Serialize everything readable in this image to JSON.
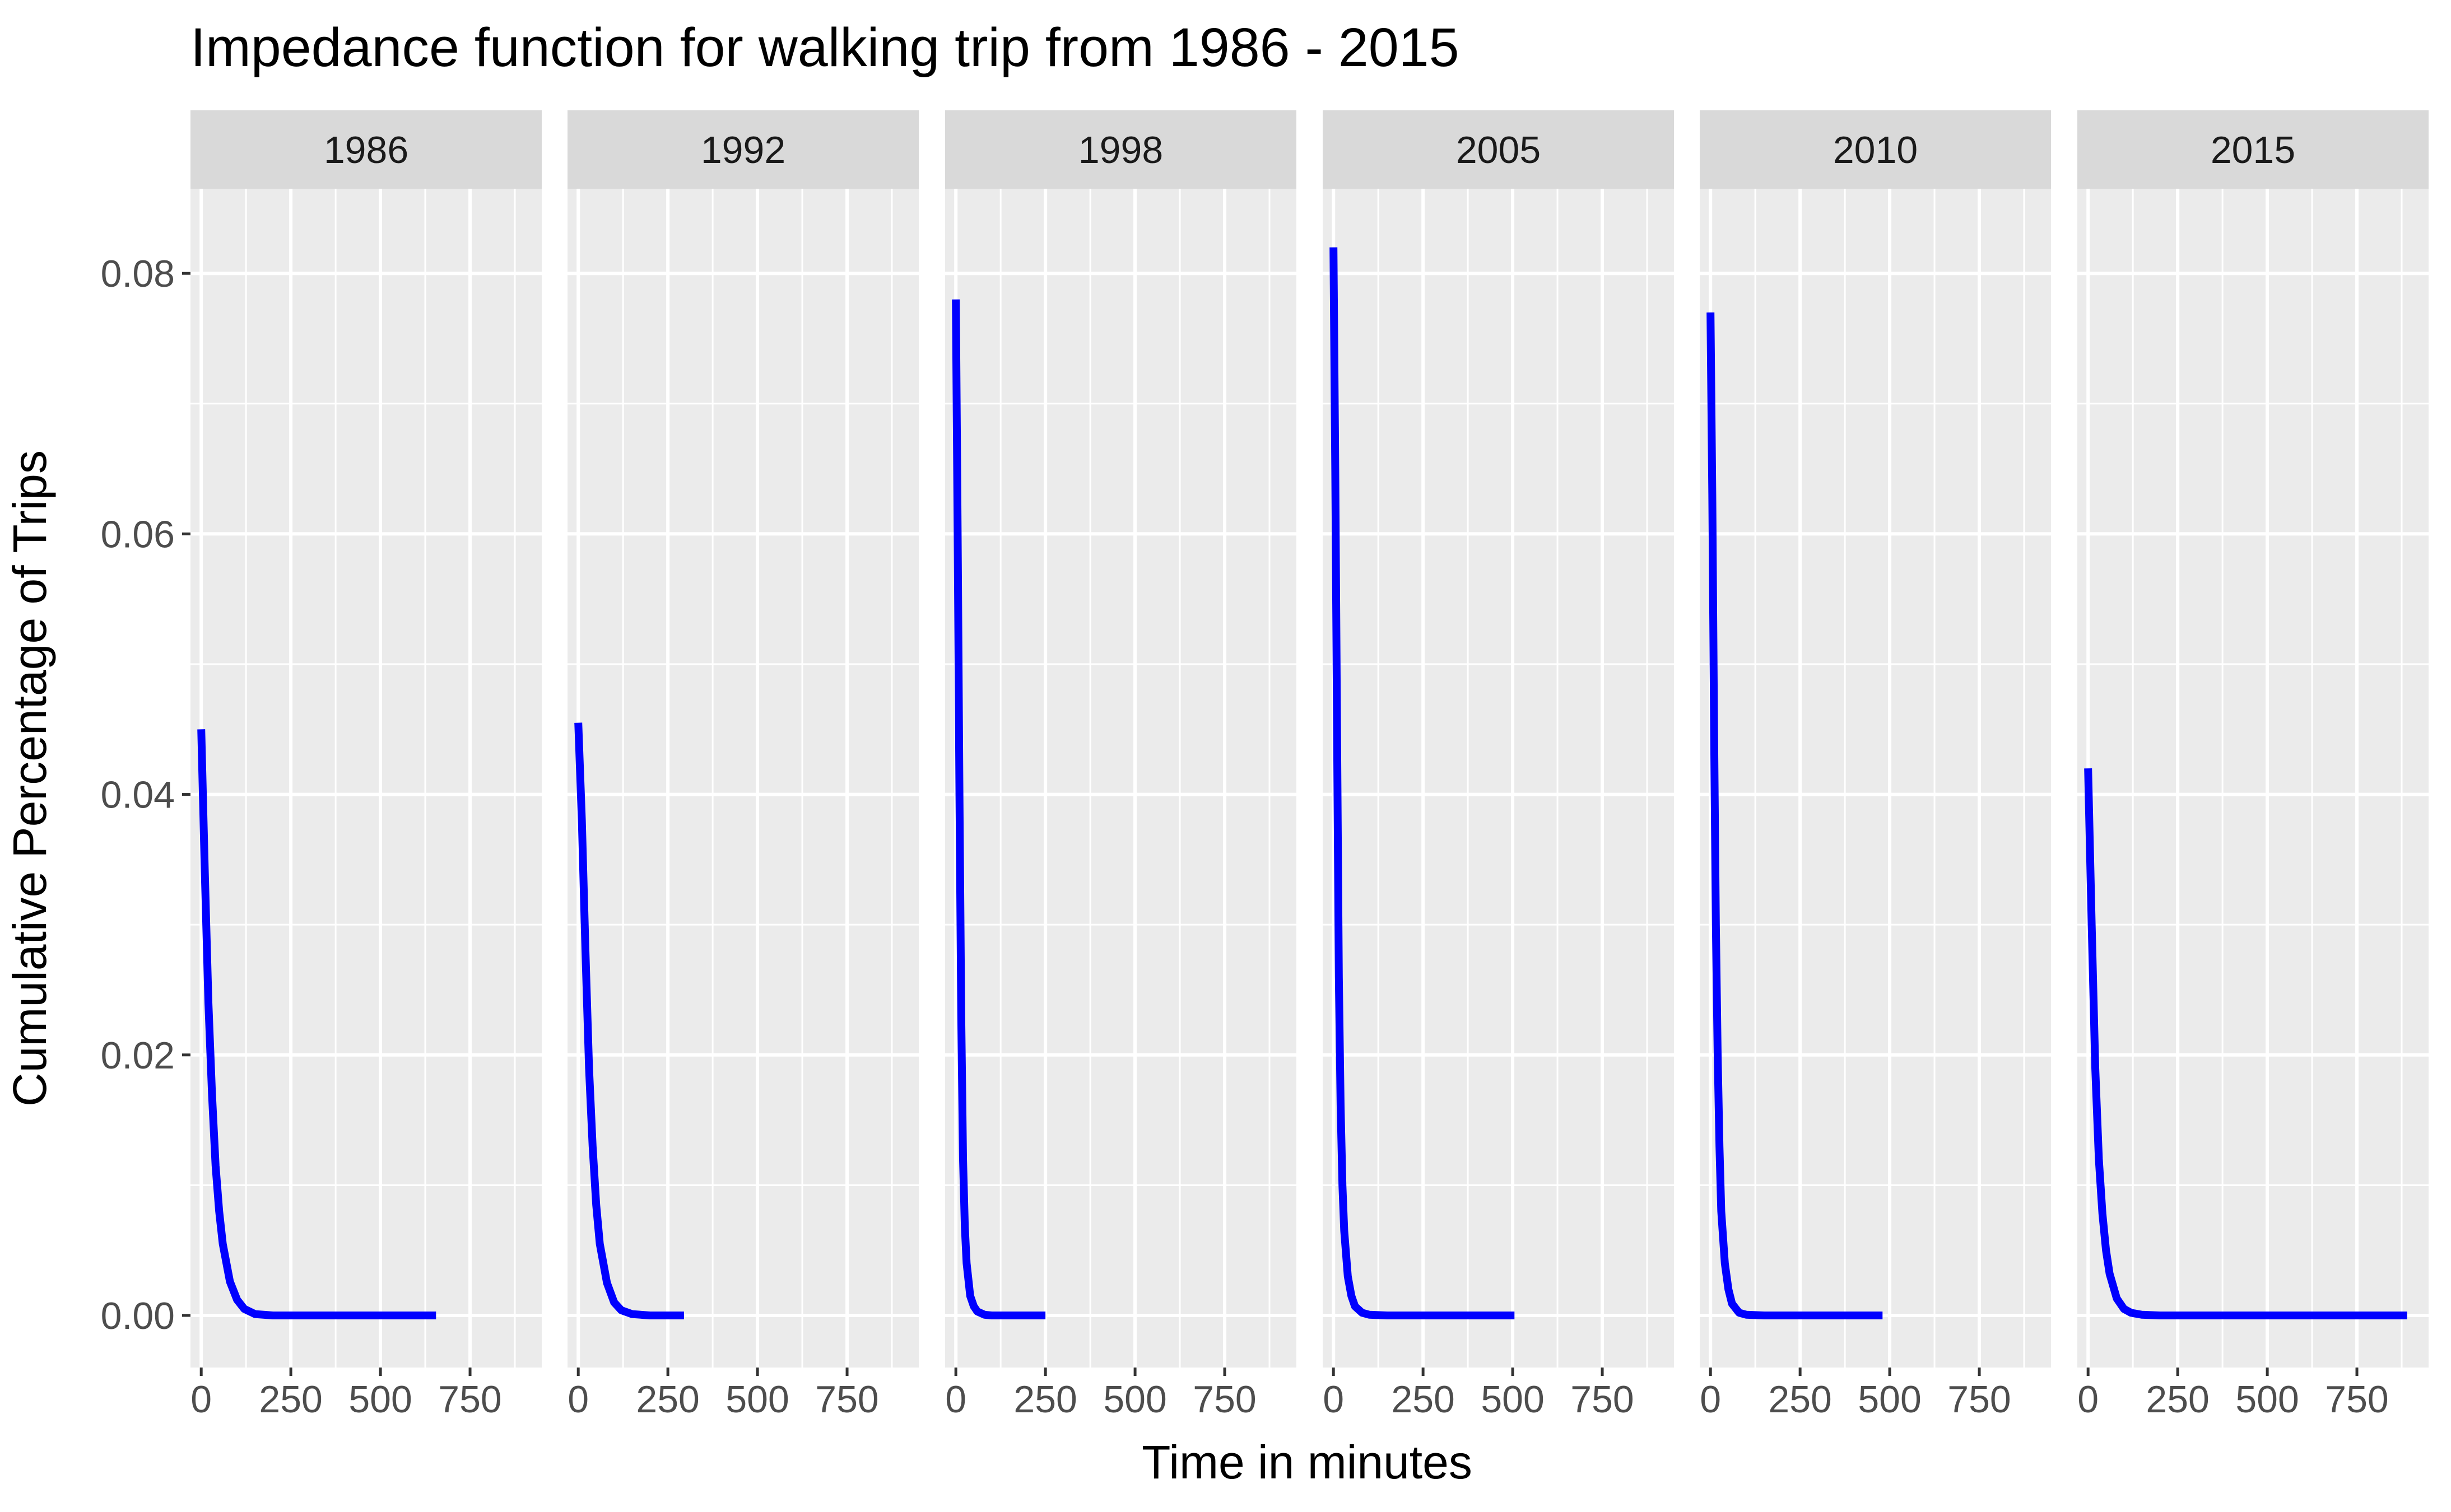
{
  "chart_data": {
    "type": "line",
    "title": "Impedance function for walking trip from 1986 - 2015",
    "xlabel": "Time in minutes",
    "ylabel": "Cumulative Percentage of Trips",
    "xlim": [
      -30,
      950
    ],
    "ylim": [
      -0.004,
      0.0865
    ],
    "x_ticks": [
      0,
      250,
      500,
      750
    ],
    "x_tick_labels": [
      "0",
      "250",
      "500",
      "750"
    ],
    "y_ticks": [
      0.0,
      0.02,
      0.04,
      0.06,
      0.08
    ],
    "y_tick_labels": [
      "0.00",
      "0.02",
      "0.04",
      "0.06",
      "0.08"
    ],
    "grid": true,
    "facet_by": "year",
    "line_color": "#0000ff",
    "panel_background": "#ebebeb",
    "strip_background": "#d9d9d9",
    "series": [
      {
        "name": "1986",
        "start_y": 0.045,
        "max_x": 655,
        "x": [
          0,
          10,
          20,
          30,
          40,
          50,
          60,
          80,
          100,
          120,
          150,
          200,
          300,
          400,
          500,
          655
        ],
        "values": [
          0.045,
          0.034,
          0.024,
          0.017,
          0.0115,
          0.008,
          0.0055,
          0.0026,
          0.0012,
          0.0005,
          0.0001,
          0.0,
          0.0,
          0.0,
          0.0,
          0.0
        ]
      },
      {
        "name": "1992",
        "start_y": 0.0455,
        "max_x": 295,
        "x": [
          0,
          10,
          20,
          30,
          40,
          50,
          60,
          80,
          100,
          120,
          150,
          200,
          250,
          295
        ],
        "values": [
          0.0455,
          0.038,
          0.028,
          0.019,
          0.013,
          0.0085,
          0.0055,
          0.0025,
          0.001,
          0.0004,
          0.0001,
          0.0,
          0.0,
          0.0
        ]
      },
      {
        "name": "1998",
        "start_y": 0.078,
        "max_x": 250,
        "x": [
          0,
          5,
          10,
          15,
          20,
          25,
          30,
          40,
          50,
          60,
          80,
          100,
          150,
          200,
          250
        ],
        "values": [
          0.078,
          0.06,
          0.04,
          0.023,
          0.012,
          0.0068,
          0.004,
          0.0015,
          0.0007,
          0.0003,
          5e-05,
          0.0,
          0.0,
          0.0,
          0.0
        ]
      },
      {
        "name": "2005",
        "start_y": 0.082,
        "max_x": 505,
        "x": [
          0,
          5,
          10,
          15,
          20,
          25,
          30,
          40,
          50,
          60,
          80,
          100,
          150,
          200,
          300,
          400,
          505
        ],
        "values": [
          0.082,
          0.065,
          0.045,
          0.026,
          0.016,
          0.01,
          0.0065,
          0.003,
          0.0015,
          0.0007,
          0.0002,
          5e-05,
          0.0,
          0.0,
          0.0,
          0.0,
          0.0
        ]
      },
      {
        "name": "2010",
        "start_y": 0.077,
        "max_x": 480,
        "x": [
          0,
          5,
          10,
          15,
          20,
          25,
          30,
          40,
          50,
          60,
          80,
          100,
          150,
          200,
          300,
          400,
          480
        ],
        "values": [
          0.077,
          0.063,
          0.045,
          0.03,
          0.02,
          0.013,
          0.008,
          0.004,
          0.002,
          0.0009,
          0.0002,
          5e-05,
          0.0,
          0.0,
          0.0,
          0.0,
          0.0
        ]
      },
      {
        "name": "2015",
        "start_y": 0.042,
        "max_x": 890,
        "x": [
          0,
          10,
          20,
          30,
          40,
          50,
          60,
          80,
          100,
          120,
          150,
          200,
          300,
          500,
          700,
          890
        ],
        "values": [
          0.042,
          0.03,
          0.019,
          0.012,
          0.0078,
          0.005,
          0.0032,
          0.0013,
          0.0005,
          0.0002,
          5e-05,
          0.0,
          0.0,
          0.0,
          0.0,
          0.0
        ]
      }
    ]
  }
}
